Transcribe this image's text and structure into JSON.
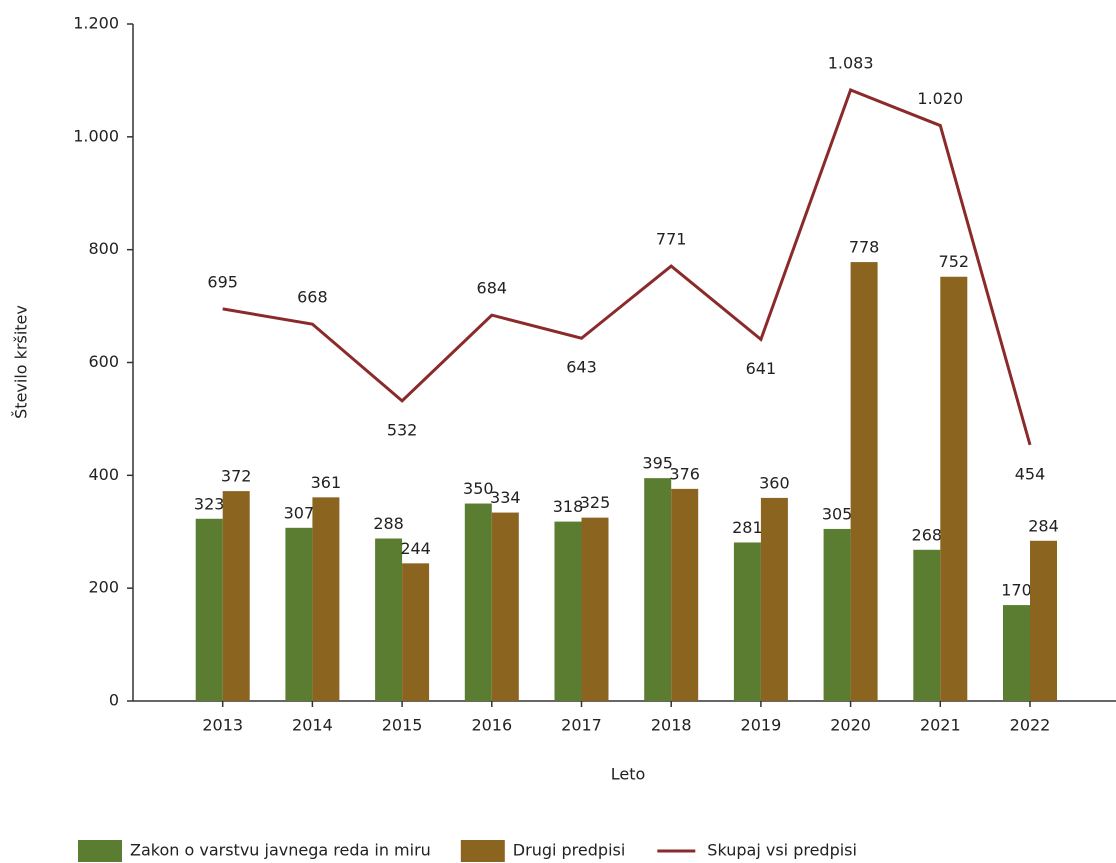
{
  "chart_data": {
    "type": "bar_line",
    "x_label": "Leto",
    "y_label": "Število kršitev",
    "categories": [
      "2013",
      "2014",
      "2015",
      "2016",
      "2017",
      "2018",
      "2019",
      "2020",
      "2021",
      "2022"
    ],
    "series": [
      {
        "name": "Zakon o varstvu javnega reda in miru",
        "type": "bar",
        "color": "#5a7d32",
        "values": [
          323,
          307,
          288,
          350,
          318,
          395,
          281,
          305,
          268,
          170
        ]
      },
      {
        "name": "Drugi predpisi",
        "type": "bar",
        "color": "#8b6420",
        "values": [
          372,
          361,
          244,
          334,
          325,
          376,
          360,
          778,
          752,
          284
        ]
      },
      {
        "name": "Skupaj vsi predpisi",
        "type": "line",
        "color": "#8b2a2a",
        "values": [
          695,
          668,
          532,
          684,
          643,
          771,
          641,
          1083,
          1020,
          454
        ],
        "value_labels": [
          "695",
          "668",
          "532",
          "684",
          "643",
          "771",
          "641",
          "1.083",
          "1.020",
          "454"
        ]
      }
    ],
    "ylim": [
      0,
      1200
    ],
    "yticks": [
      0,
      200,
      400,
      600,
      800,
      {
        "value": 1000,
        "label": "1.000"
      },
      {
        "value": 1200,
        "label": "1.200"
      }
    ],
    "grid": false,
    "legend": "bottom"
  }
}
